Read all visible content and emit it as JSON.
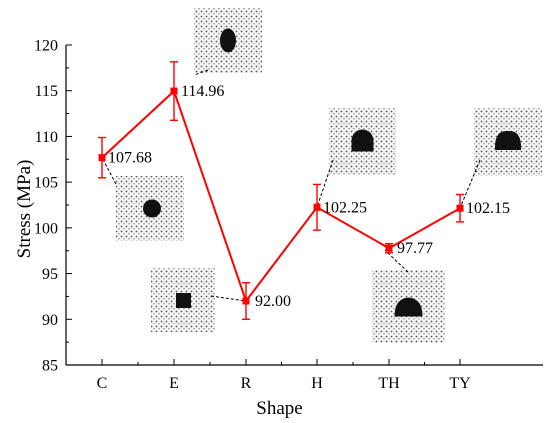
{
  "chart_data": {
    "type": "line",
    "categories": [
      "C",
      "E",
      "R",
      "H",
      "TH",
      "TY"
    ],
    "series": [
      {
        "values": [
          107.68,
          114.96,
          92.0,
          102.25,
          97.77,
          102.15
        ],
        "error_plus": [
          2.2,
          3.2,
          2.0,
          2.5,
          0.5,
          1.5
        ],
        "error_minus": [
          2.2,
          3.2,
          2.0,
          2.5,
          0.5,
          1.5
        ],
        "color": "#ff0000",
        "marker": "square"
      }
    ],
    "data_labels": [
      "107.68",
      "114.96",
      "92.00",
      "102.25",
      "97.77",
      "102.15"
    ],
    "xlabel": "Shape",
    "ylabel": "Stress (MPa)",
    "ylim": [
      85,
      120
    ],
    "yticks": [
      85,
      90,
      95,
      100,
      105,
      110,
      115,
      120
    ],
    "grid": false,
    "insets": [
      {
        "category": "C",
        "shape": "circle"
      },
      {
        "category": "E",
        "shape": "ellipse"
      },
      {
        "category": "R",
        "shape": "square"
      },
      {
        "category": "H",
        "shape": "horseshoe"
      },
      {
        "category": "TH",
        "shape": "three-centered-arch"
      },
      {
        "category": "TY",
        "shape": "elliptical-arch"
      }
    ]
  }
}
